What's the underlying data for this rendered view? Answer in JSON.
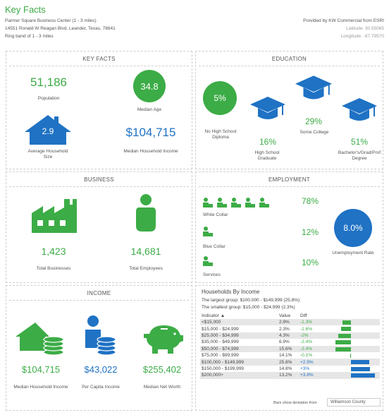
{
  "header": {
    "title": "Key Facts",
    "address_line1": "Parmer Square Business Center (1 - 3 miles)",
    "address_line2": "14551 Ronald W Reagan Blvd, Leander, Texas, 78641",
    "address_line3": "Ring band of 1 - 3 miles",
    "provider": "Provided by KW Commercial from ESRI",
    "latitude": "Latitude: 30.55065",
    "longitude": "Longitude: -97.79570"
  },
  "key_facts": {
    "title": "KEY FACTS",
    "population_value": "51,186",
    "population_label": "Population",
    "median_age_value": "34.8",
    "median_age_label": "Median Age",
    "household_size_value": "2.9",
    "household_size_label": "Average Household Size",
    "median_income_value": "$104,715",
    "median_income_label": "Median Household Income"
  },
  "education": {
    "title": "EDUCATION",
    "no_hs_value": "5%",
    "no_hs_label": "No High School Diploma",
    "hs_value": "16%",
    "hs_label": "High School Graduate",
    "college_value": "29%",
    "college_label": "Some College",
    "bachelor_value": "51%",
    "bachelor_label": "Bachelor's/Grad/Prof Degree"
  },
  "business": {
    "title": "BUSINESS",
    "businesses_value": "1,423",
    "businesses_label": "Total Businesses",
    "employees_value": "14,681",
    "employees_label": "Total Employees"
  },
  "employment": {
    "title": "EMPLOYMENT",
    "white_collar_value": "78%",
    "white_collar_label": "White Collar",
    "blue_collar_value": "12%",
    "blue_collar_label": "Blue Collar",
    "services_value": "10%",
    "services_label": "Services",
    "unemployment_value": "8.0%",
    "unemployment_label": "Unemployment Rate"
  },
  "income": {
    "title": "INCOME",
    "median_household_value": "$104,715",
    "median_household_label": "Median Household Income",
    "per_capita_value": "$43,022",
    "per_capita_label": "Per Capita Income",
    "net_worth_value": "$255,402",
    "net_worth_label": "Median Net Worth"
  },
  "households": {
    "title": "Households By Income",
    "largest": "The largest group: $100,000 - $149,999 (25.8%)",
    "smallest": "The smallest group: $15,000 - $24,999 (2.3%)",
    "col_indicator": "Indicator ▲",
    "col_value": "Value",
    "col_diff": "Diff",
    "rows": [
      {
        "indicator": "<$15,000",
        "value": "2.9%",
        "diff": "-1.3%",
        "d": -1.3
      },
      {
        "indicator": "$15,000 - $24,999",
        "value": "2.3%",
        "diff": "-1.6%",
        "d": -1.6
      },
      {
        "indicator": "$25,000 - $34,999",
        "value": "4.3%",
        "diff": "-2%",
        "d": -2.0
      },
      {
        "indicator": "$35,000 - $49,999",
        "value": "6.9%",
        "diff": "-2.4%",
        "d": -2.4
      },
      {
        "indicator": "$50,000 - $74,999",
        "value": "15.6%",
        "diff": "-2.4%",
        "d": -2.4
      },
      {
        "indicator": "$75,000 - $99,999",
        "value": "14.1%",
        "diff": "-0.1%",
        "d": -0.1
      },
      {
        "indicator": "$100,000 - $149,999",
        "value": "25.8%",
        "diff": "+2.9%",
        "d": 2.9
      },
      {
        "indicator": "$150,000 - $199,999",
        "value": "14.8%",
        "diff": "+3%",
        "d": 3.0
      },
      {
        "indicator": "$200,000+",
        "value": "13.2%",
        "diff": "+3.8%",
        "d": 3.8
      }
    ],
    "footer_label": "Bars show deviation from",
    "footer_select": "Williamson County"
  },
  "colors": {
    "green": "#3cac46",
    "blue": "#1f72c4"
  }
}
